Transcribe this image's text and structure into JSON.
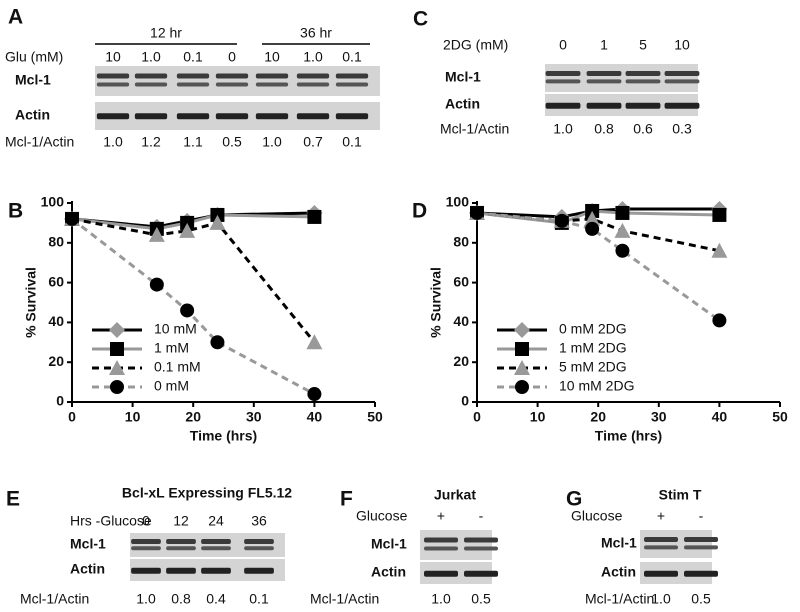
{
  "panels": [
    {
      "label": "A",
      "groups": [
        "12 hr",
        "36 hr"
      ],
      "lane_header": "Glu (mM)",
      "lanes": [
        "10",
        "1.0",
        "0.1",
        "0",
        "10",
        "1.0",
        "0.1"
      ],
      "rows": [
        "Mcl-1",
        "Actin"
      ],
      "ratio_label": "Mcl-1/Actin",
      "ratios": [
        "1.0",
        "1.2",
        "1.1",
        "0.5",
        "1.0",
        "0.7",
        "0.1"
      ]
    },
    {
      "label": "C",
      "lane_header": "2DG (mM)",
      "lanes": [
        "0",
        "1",
        "5",
        "10"
      ],
      "rows": [
        "Mcl-1",
        "Actin"
      ],
      "ratio_label": "Mcl-1/Actin",
      "ratios": [
        "1.0",
        "0.8",
        "0.6",
        "0.3"
      ]
    },
    {
      "label": "E",
      "title": "Bcl-xL Expressing FL5.12",
      "lane_header": "Hrs -Glucose",
      "lanes": [
        "0",
        "12",
        "24",
        "36"
      ],
      "rows": [
        "Mcl-1",
        "Actin"
      ],
      "ratio_label": "Mcl-1/Actin",
      "ratios": [
        "1.0",
        "0.8",
        "0.4",
        "0.1"
      ]
    },
    {
      "label": "F",
      "title": "Jurkat",
      "lane_header": "Glucose",
      "lanes": [
        "+",
        "-"
      ],
      "rows": [
        "Mcl-1",
        "Actin"
      ],
      "ratio_label": "Mcl-1/Actin",
      "ratios": [
        "1.0",
        "0.5"
      ]
    },
    {
      "label": "G",
      "title": "Stim T",
      "lane_header": "Glucose",
      "lanes": [
        "+",
        "-"
      ],
      "rows": [
        "Mcl-1",
        "Actin"
      ],
      "ratio_label": "Mcl-1/Actin",
      "ratios": [
        "1.0",
        "0.5"
      ]
    }
  ],
  "chart_data": [
    {
      "type": "line",
      "label": "B",
      "x": [
        0,
        14,
        19,
        24,
        40
      ],
      "xlim": [
        0,
        50
      ],
      "xticks": [
        0,
        10,
        20,
        30,
        40,
        50
      ],
      "ylim": [
        0,
        100
      ],
      "yticks": [
        0,
        20,
        40,
        60,
        80,
        100
      ],
      "x_label": "Time (hrs)",
      "y_label": "% Survival",
      "legend": "lower left",
      "series": [
        {
          "name": "10 mM",
          "color": "#999999",
          "line_color": "#000000",
          "dash": "solid",
          "marker": "diamond",
          "values": [
            92,
            88,
            91,
            94,
            95
          ]
        },
        {
          "name": "1 mM",
          "color": "#000000",
          "line_color": "#999999",
          "dash": "solid",
          "marker": "square",
          "values": [
            92,
            87,
            90,
            94,
            93
          ]
        },
        {
          "name": "0.1 mM",
          "color": "#999999",
          "line_color": "#000000",
          "dash": "dashed",
          "marker": "triangle",
          "values": [
            92,
            84,
            86,
            90,
            30
          ]
        },
        {
          "name": "0 mM",
          "color": "#000000",
          "line_color": "#999999",
          "dash": "dashed",
          "marker": "circle",
          "values": [
            92,
            59,
            46,
            30,
            4
          ]
        }
      ]
    },
    {
      "type": "line",
      "label": "D",
      "x": [
        0,
        14,
        19,
        24,
        40
      ],
      "xlim": [
        0,
        50
      ],
      "xticks": [
        0,
        10,
        20,
        30,
        40,
        50
      ],
      "ylim": [
        0,
        100
      ],
      "yticks": [
        0,
        20,
        40,
        60,
        80,
        100
      ],
      "x_label": "Time (hrs)",
      "y_label": "% Survival",
      "legend": "lower left",
      "series": [
        {
          "name": "0 mM 2DG",
          "color": "#999999",
          "line_color": "#000000",
          "dash": "solid",
          "marker": "diamond",
          "values": [
            95,
            93,
            96,
            97,
            97
          ]
        },
        {
          "name": "1 mM 2DG",
          "color": "#000000",
          "line_color": "#999999",
          "dash": "solid",
          "marker": "square",
          "values": [
            95,
            90,
            96,
            95,
            94
          ]
        },
        {
          "name": "5 mM 2DG",
          "color": "#999999",
          "line_color": "#000000",
          "dash": "dashed",
          "marker": "triangle",
          "values": [
            95,
            91,
            92,
            86,
            76
          ]
        },
        {
          "name": "10 mM 2DG",
          "color": "#000000",
          "line_color": "#999999",
          "dash": "dashed",
          "marker": "circle",
          "values": [
            95,
            91,
            87,
            76,
            41
          ]
        }
      ]
    }
  ]
}
